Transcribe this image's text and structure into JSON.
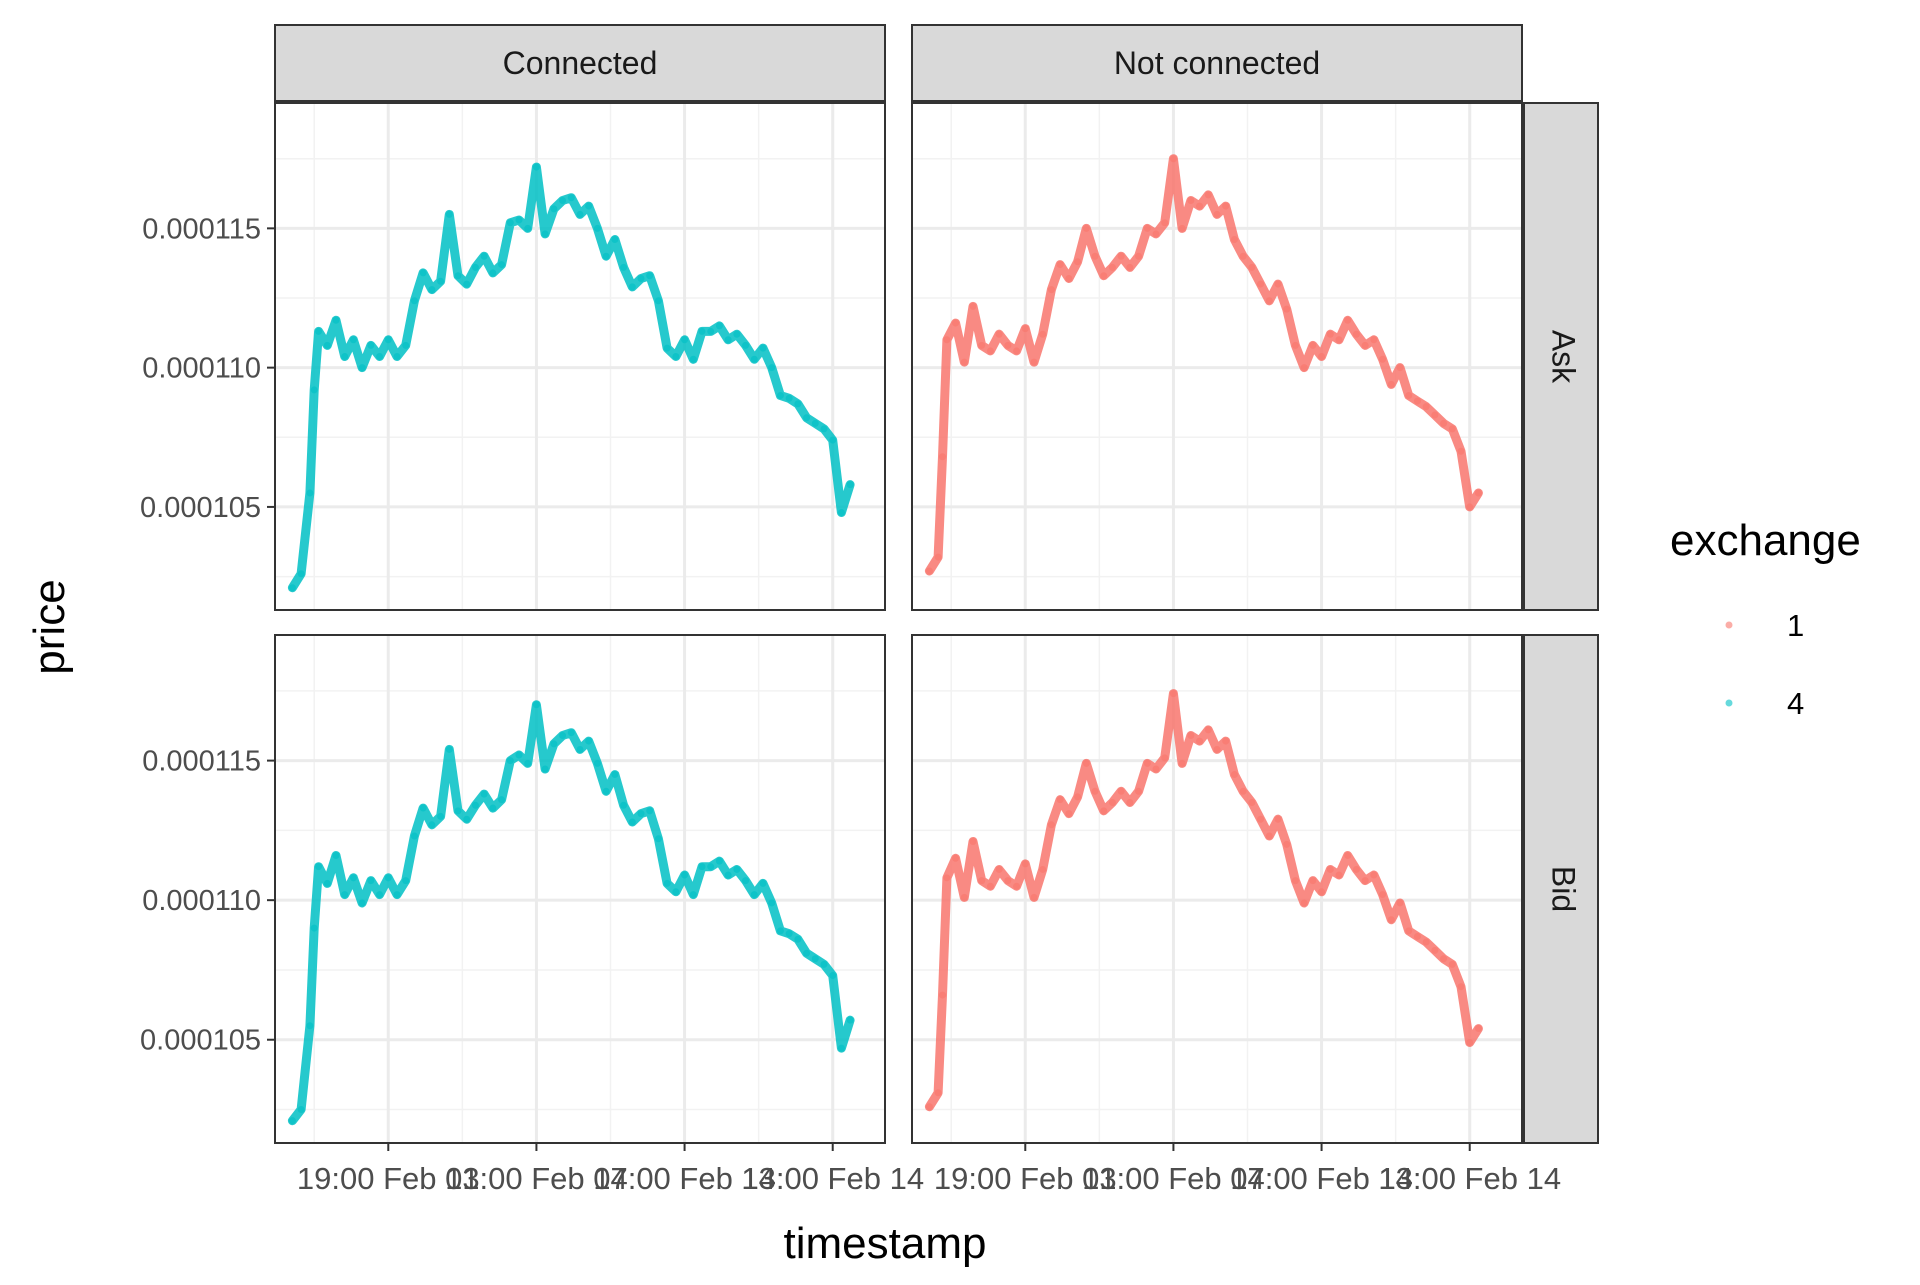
{
  "chart_data": {
    "type": "scatter",
    "layout": "facet_grid",
    "xlabel": "timestamp",
    "ylabel": "price",
    "x_ticks": [
      "19:00 Feb 13",
      "01:00 Feb 14",
      "07:00 Feb 14",
      "13:00 Feb 14"
    ],
    "y_ticks": [
      "0.000105",
      "0.000110",
      "0.000115"
    ],
    "ylim": [
      0.0001013,
      0.0001195
    ],
    "grid": true,
    "legend": {
      "title": "exchange",
      "position": "right",
      "entries": [
        {
          "label": "1",
          "color": "#F8766D"
        },
        {
          "label": "4",
          "color": "#00BFC4"
        }
      ]
    },
    "facet_cols": [
      "Connected",
      "Not connected"
    ],
    "facet_rows": [
      "Ask",
      "Bid"
    ],
    "panels": [
      {
        "col": "Connected",
        "row": "Ask",
        "color": "#00BFC4",
        "points": [
          [
            0.04,
            0.0001021
          ],
          [
            0.06,
            0.0001026
          ],
          [
            0.08,
            0.0001055
          ],
          [
            0.09,
            0.0001092
          ],
          [
            0.1,
            0.0001113
          ],
          [
            0.12,
            0.0001108
          ],
          [
            0.14,
            0.0001117
          ],
          [
            0.16,
            0.0001104
          ],
          [
            0.18,
            0.000111
          ],
          [
            0.2,
            0.00011
          ],
          [
            0.22,
            0.0001108
          ],
          [
            0.24,
            0.0001104
          ],
          [
            0.26,
            0.000111
          ],
          [
            0.28,
            0.0001104
          ],
          [
            0.3,
            0.0001108
          ],
          [
            0.32,
            0.0001124
          ],
          [
            0.34,
            0.0001134
          ],
          [
            0.36,
            0.0001128
          ],
          [
            0.38,
            0.0001131
          ],
          [
            0.4,
            0.0001155
          ],
          [
            0.42,
            0.0001133
          ],
          [
            0.44,
            0.000113
          ],
          [
            0.46,
            0.0001136
          ],
          [
            0.48,
            0.000114
          ],
          [
            0.5,
            0.0001134
          ],
          [
            0.52,
            0.0001137
          ],
          [
            0.54,
            0.0001152
          ],
          [
            0.56,
            0.0001153
          ],
          [
            0.58,
            0.000115
          ],
          [
            0.6,
            0.0001172
          ],
          [
            0.62,
            0.0001148
          ],
          [
            0.64,
            0.0001157
          ],
          [
            0.66,
            0.000116
          ],
          [
            0.68,
            0.0001161
          ],
          [
            0.7,
            0.0001155
          ],
          [
            0.72,
            0.0001158
          ],
          [
            0.74,
            0.000115
          ],
          [
            0.76,
            0.000114
          ],
          [
            0.78,
            0.0001146
          ],
          [
            0.8,
            0.0001136
          ],
          [
            0.82,
            0.0001129
          ],
          [
            0.84,
            0.0001132
          ],
          [
            0.86,
            0.0001133
          ],
          [
            0.88,
            0.0001124
          ],
          [
            0.9,
            0.0001107
          ],
          [
            0.92,
            0.0001104
          ],
          [
            0.94,
            0.000111
          ],
          [
            0.96,
            0.0001103
          ],
          [
            0.98,
            0.0001113
          ],
          [
            1.0,
            0.0001113
          ],
          [
            1.02,
            0.0001115
          ],
          [
            1.04,
            0.000111
          ],
          [
            1.06,
            0.0001112
          ],
          [
            1.08,
            0.0001108
          ],
          [
            1.1,
            0.0001103
          ],
          [
            1.12,
            0.0001107
          ],
          [
            1.14,
            0.00011
          ],
          [
            1.16,
            0.000109
          ],
          [
            1.18,
            0.0001089
          ],
          [
            1.2,
            0.0001087
          ],
          [
            1.22,
            0.0001082
          ],
          [
            1.24,
            0.000108
          ],
          [
            1.26,
            0.0001078
          ],
          [
            1.28,
            0.0001074
          ],
          [
            1.3,
            0.0001048
          ],
          [
            1.32,
            0.0001058
          ]
        ]
      },
      {
        "col": "Not connected",
        "row": "Ask",
        "color": "#F8766D",
        "points": [
          [
            0.04,
            0.0001027
          ],
          [
            0.06,
            0.0001032
          ],
          [
            0.07,
            0.0001068
          ],
          [
            0.08,
            0.000111
          ],
          [
            0.1,
            0.0001116
          ],
          [
            0.12,
            0.0001102
          ],
          [
            0.14,
            0.0001122
          ],
          [
            0.16,
            0.0001108
          ],
          [
            0.18,
            0.0001106
          ],
          [
            0.2,
            0.0001112
          ],
          [
            0.22,
            0.0001108
          ],
          [
            0.24,
            0.0001106
          ],
          [
            0.26,
            0.0001114
          ],
          [
            0.28,
            0.0001102
          ],
          [
            0.3,
            0.0001112
          ],
          [
            0.32,
            0.0001128
          ],
          [
            0.34,
            0.0001137
          ],
          [
            0.36,
            0.0001132
          ],
          [
            0.38,
            0.0001138
          ],
          [
            0.4,
            0.000115
          ],
          [
            0.42,
            0.000114
          ],
          [
            0.44,
            0.0001133
          ],
          [
            0.46,
            0.0001136
          ],
          [
            0.48,
            0.000114
          ],
          [
            0.5,
            0.0001136
          ],
          [
            0.52,
            0.000114
          ],
          [
            0.54,
            0.000115
          ],
          [
            0.56,
            0.0001148
          ],
          [
            0.58,
            0.0001152
          ],
          [
            0.6,
            0.0001175
          ],
          [
            0.62,
            0.000115
          ],
          [
            0.64,
            0.000116
          ],
          [
            0.66,
            0.0001158
          ],
          [
            0.68,
            0.0001162
          ],
          [
            0.7,
            0.0001155
          ],
          [
            0.72,
            0.0001158
          ],
          [
            0.74,
            0.0001146
          ],
          [
            0.76,
            0.000114
          ],
          [
            0.78,
            0.0001136
          ],
          [
            0.8,
            0.000113
          ],
          [
            0.82,
            0.0001124
          ],
          [
            0.84,
            0.000113
          ],
          [
            0.86,
            0.0001121
          ],
          [
            0.88,
            0.0001108
          ],
          [
            0.9,
            0.00011
          ],
          [
            0.92,
            0.0001108
          ],
          [
            0.94,
            0.0001104
          ],
          [
            0.96,
            0.0001112
          ],
          [
            0.98,
            0.000111
          ],
          [
            1.0,
            0.0001117
          ],
          [
            1.02,
            0.0001112
          ],
          [
            1.04,
            0.0001108
          ],
          [
            1.06,
            0.000111
          ],
          [
            1.08,
            0.0001103
          ],
          [
            1.1,
            0.0001094
          ],
          [
            1.12,
            0.00011
          ],
          [
            1.14,
            0.000109
          ],
          [
            1.16,
            0.0001088
          ],
          [
            1.18,
            0.0001086
          ],
          [
            1.2,
            0.0001083
          ],
          [
            1.22,
            0.000108
          ],
          [
            1.24,
            0.0001078
          ],
          [
            1.26,
            0.000107
          ],
          [
            1.28,
            0.000105
          ],
          [
            1.3,
            0.0001055
          ]
        ]
      },
      {
        "col": "Connected",
        "row": "Bid",
        "color": "#00BFC4",
        "points": [
          [
            0.04,
            0.0001021
          ],
          [
            0.06,
            0.0001025
          ],
          [
            0.08,
            0.0001055
          ],
          [
            0.09,
            0.000109
          ],
          [
            0.1,
            0.0001112
          ],
          [
            0.12,
            0.0001106
          ],
          [
            0.14,
            0.0001116
          ],
          [
            0.16,
            0.0001102
          ],
          [
            0.18,
            0.0001108
          ],
          [
            0.2,
            0.0001099
          ],
          [
            0.22,
            0.0001107
          ],
          [
            0.24,
            0.0001102
          ],
          [
            0.26,
            0.0001108
          ],
          [
            0.28,
            0.0001102
          ],
          [
            0.3,
            0.0001107
          ],
          [
            0.32,
            0.0001123
          ],
          [
            0.34,
            0.0001133
          ],
          [
            0.36,
            0.0001127
          ],
          [
            0.38,
            0.000113
          ],
          [
            0.4,
            0.0001154
          ],
          [
            0.42,
            0.0001132
          ],
          [
            0.44,
            0.0001129
          ],
          [
            0.46,
            0.0001134
          ],
          [
            0.48,
            0.0001138
          ],
          [
            0.5,
            0.0001133
          ],
          [
            0.52,
            0.0001136
          ],
          [
            0.54,
            0.000115
          ],
          [
            0.56,
            0.0001152
          ],
          [
            0.58,
            0.0001149
          ],
          [
            0.6,
            0.000117
          ],
          [
            0.62,
            0.0001147
          ],
          [
            0.64,
            0.0001156
          ],
          [
            0.66,
            0.0001159
          ],
          [
            0.68,
            0.000116
          ],
          [
            0.7,
            0.0001154
          ],
          [
            0.72,
            0.0001157
          ],
          [
            0.74,
            0.0001149
          ],
          [
            0.76,
            0.0001139
          ],
          [
            0.78,
            0.0001145
          ],
          [
            0.8,
            0.0001134
          ],
          [
            0.82,
            0.0001128
          ],
          [
            0.84,
            0.0001131
          ],
          [
            0.86,
            0.0001132
          ],
          [
            0.88,
            0.0001122
          ],
          [
            0.9,
            0.0001106
          ],
          [
            0.92,
            0.0001103
          ],
          [
            0.94,
            0.0001109
          ],
          [
            0.96,
            0.0001102
          ],
          [
            0.98,
            0.0001112
          ],
          [
            1.0,
            0.0001112
          ],
          [
            1.02,
            0.0001114
          ],
          [
            1.04,
            0.0001109
          ],
          [
            1.06,
            0.0001111
          ],
          [
            1.08,
            0.0001107
          ],
          [
            1.1,
            0.0001102
          ],
          [
            1.12,
            0.0001106
          ],
          [
            1.14,
            0.0001099
          ],
          [
            1.16,
            0.0001089
          ],
          [
            1.18,
            0.0001088
          ],
          [
            1.2,
            0.0001086
          ],
          [
            1.22,
            0.0001081
          ],
          [
            1.24,
            0.0001079
          ],
          [
            1.26,
            0.0001077
          ],
          [
            1.28,
            0.0001073
          ],
          [
            1.3,
            0.0001047
          ],
          [
            1.32,
            0.0001057
          ]
        ]
      },
      {
        "col": "Not connected",
        "row": "Bid",
        "color": "#F8766D",
        "points": [
          [
            0.04,
            0.0001026
          ],
          [
            0.06,
            0.0001031
          ],
          [
            0.07,
            0.0001066
          ],
          [
            0.08,
            0.0001108
          ],
          [
            0.1,
            0.0001115
          ],
          [
            0.12,
            0.0001101
          ],
          [
            0.14,
            0.0001121
          ],
          [
            0.16,
            0.0001107
          ],
          [
            0.18,
            0.0001105
          ],
          [
            0.2,
            0.0001111
          ],
          [
            0.22,
            0.0001107
          ],
          [
            0.24,
            0.0001105
          ],
          [
            0.26,
            0.0001113
          ],
          [
            0.28,
            0.0001101
          ],
          [
            0.3,
            0.0001111
          ],
          [
            0.32,
            0.0001127
          ],
          [
            0.34,
            0.0001136
          ],
          [
            0.36,
            0.0001131
          ],
          [
            0.38,
            0.0001137
          ],
          [
            0.4,
            0.0001149
          ],
          [
            0.42,
            0.0001139
          ],
          [
            0.44,
            0.0001132
          ],
          [
            0.46,
            0.0001135
          ],
          [
            0.48,
            0.0001139
          ],
          [
            0.5,
            0.0001135
          ],
          [
            0.52,
            0.0001139
          ],
          [
            0.54,
            0.0001149
          ],
          [
            0.56,
            0.0001147
          ],
          [
            0.58,
            0.0001151
          ],
          [
            0.6,
            0.0001174
          ],
          [
            0.62,
            0.0001149
          ],
          [
            0.64,
            0.0001159
          ],
          [
            0.66,
            0.0001157
          ],
          [
            0.68,
            0.0001161
          ],
          [
            0.7,
            0.0001154
          ],
          [
            0.72,
            0.0001157
          ],
          [
            0.74,
            0.0001145
          ],
          [
            0.76,
            0.0001139
          ],
          [
            0.78,
            0.0001135
          ],
          [
            0.8,
            0.0001129
          ],
          [
            0.82,
            0.0001123
          ],
          [
            0.84,
            0.0001129
          ],
          [
            0.86,
            0.000112
          ],
          [
            0.88,
            0.0001107
          ],
          [
            0.9,
            0.0001099
          ],
          [
            0.92,
            0.0001107
          ],
          [
            0.94,
            0.0001103
          ],
          [
            0.96,
            0.0001111
          ],
          [
            0.98,
            0.0001109
          ],
          [
            1.0,
            0.0001116
          ],
          [
            1.02,
            0.0001111
          ],
          [
            1.04,
            0.0001107
          ],
          [
            1.06,
            0.0001109
          ],
          [
            1.08,
            0.0001102
          ],
          [
            1.1,
            0.0001093
          ],
          [
            1.12,
            0.0001099
          ],
          [
            1.14,
            0.0001089
          ],
          [
            1.16,
            0.0001087
          ],
          [
            1.18,
            0.0001085
          ],
          [
            1.2,
            0.0001082
          ],
          [
            1.22,
            0.0001079
          ],
          [
            1.24,
            0.0001077
          ],
          [
            1.26,
            0.0001069
          ],
          [
            1.28,
            0.0001049
          ],
          [
            1.3,
            0.0001054
          ]
        ]
      }
    ]
  }
}
